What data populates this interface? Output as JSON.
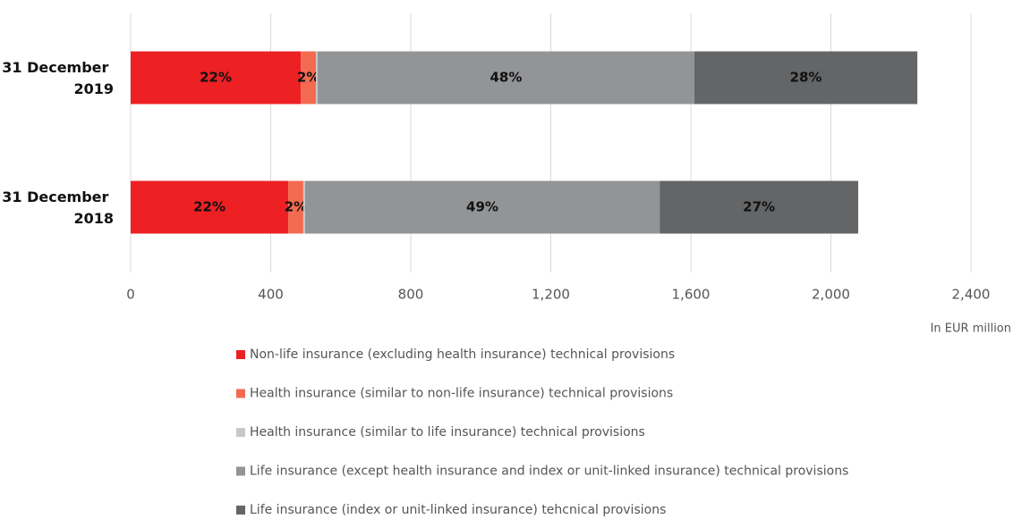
{
  "chart_data": {
    "type": "stacked-barh",
    "categories": [
      "31 December 2019",
      "31 December 2018"
    ],
    "series": [
      {
        "name": "Non-life insurance (excluding health insurance) technical provisions",
        "color": "#ed2024",
        "values": [
          486,
          450
        ],
        "value_labels": [
          "22%",
          "22%"
        ]
      },
      {
        "name": "Health insurance (similar to non-life insurance) technical provisions",
        "color": "#f26b50",
        "values": [
          43,
          43
        ],
        "value_labels": [
          "2%",
          "2%"
        ]
      },
      {
        "name": "Health insurance (similar to life insurance) technical provisions",
        "color": "#c8c8c8",
        "values": [
          5,
          5
        ]
      },
      {
        "name": "Life insurance (except health insurance and index or unit-linked insurance) technical provisions",
        "color": "#939496",
        "values": [
          1076,
          1013
        ],
        "value_labels": [
          "48%",
          "49%"
        ]
      },
      {
        "name": "Life insurance (index or unit-linked insurance) tehcnical provisions",
        "color": "#646567",
        "values": [
          637,
          567
        ],
        "value_labels": [
          "28%",
          "27%"
        ]
      }
    ],
    "xlabel": "In EUR million",
    "xlim": [
      0,
      2400
    ],
    "xticks": [
      0,
      400,
      800,
      {
        "value": 1200,
        "label": "1,200"
      },
      {
        "value": 1600,
        "label": "1,600"
      },
      {
        "value": 2000,
        "label": "2,000"
      },
      {
        "value": 2400,
        "label": "2,400"
      }
    ],
    "grid": true
  }
}
